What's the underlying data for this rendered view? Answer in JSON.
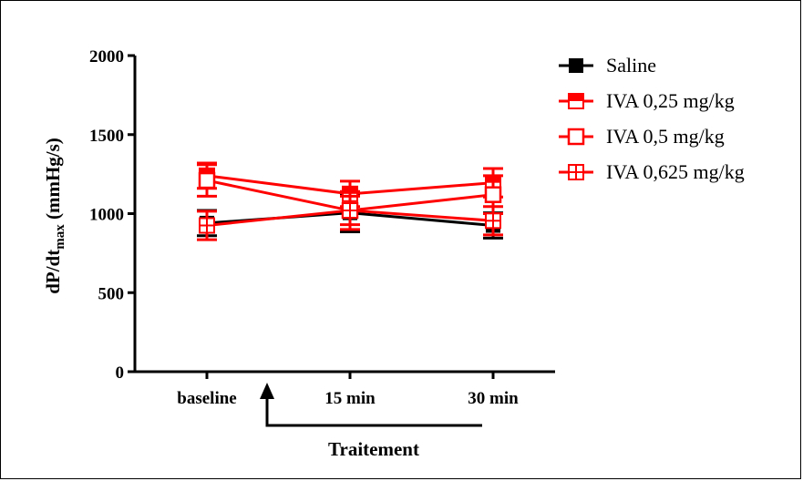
{
  "chart_data": {
    "type": "line",
    "title": "",
    "ylabel": "dP/dt",
    "ylabel_sub": "max",
    "ylabel_units": " (mmHg/s)",
    "ylim": [
      0,
      2000
    ],
    "yticks": [
      "0",
      "500",
      "1000",
      "1500",
      "2000"
    ],
    "ytick_values": [
      0,
      500,
      1000,
      1500,
      2000
    ],
    "categories": [
      "baseline",
      "15 min",
      "30 min"
    ],
    "annotation": "Traitement",
    "legend_position": "right",
    "series": [
      {
        "name": "Saline",
        "color": "#000000",
        "marker": "filled",
        "values": [
          940,
          1005,
          925
        ],
        "errors": [
          80,
          120,
          80
        ]
      },
      {
        "name": "IVA 0,25 mg/kg",
        "color": "#ff0000",
        "marker": "half",
        "values": [
          1240,
          1125,
          1195
        ],
        "errors": [
          80,
          80,
          90
        ]
      },
      {
        "name": "IVA 0,5 mg/kg",
        "color": "#ff0000",
        "marker": "open",
        "values": [
          1210,
          1020,
          1120
        ],
        "errors": [
          100,
          90,
          120
        ]
      },
      {
        "name": "IVA 0,625 mg/kg",
        "color": "#ff0000",
        "marker": "cross",
        "values": [
          925,
          1020,
          955
        ],
        "errors": [
          90,
          120,
          90
        ]
      }
    ]
  }
}
